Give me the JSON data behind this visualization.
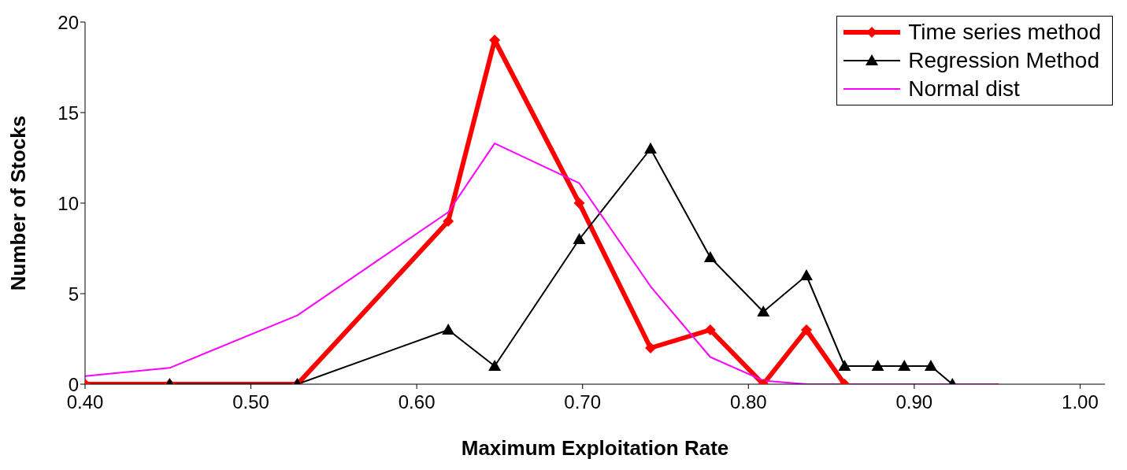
{
  "chart_data": {
    "type": "line",
    "xlabel": "Maximum Exploitation Rate",
    "ylabel": "Number of Stocks",
    "xlim": [
      0.4,
      1.015
    ],
    "xticks": [
      {
        "value": 0.4,
        "label": "0.40"
      },
      {
        "value": 0.5,
        "label": "0.50"
      },
      {
        "value": 0.6,
        "label": "0.60"
      },
      {
        "value": 0.7,
        "label": "0.70"
      },
      {
        "value": 0.8,
        "label": "0.80"
      },
      {
        "value": 0.9,
        "label": "0.90"
      },
      {
        "value": 1.0,
        "label": "1.00"
      }
    ],
    "ylim": [
      0,
      20
    ],
    "yticks": [
      0,
      5,
      10,
      15,
      20
    ],
    "grid": false,
    "legend": "top right",
    "series": [
      {
        "name": "Time series method",
        "color": "#ff0000",
        "marker": "diamond",
        "x": [
          0.4,
          0.451,
          0.528,
          0.619,
          0.647,
          0.698,
          0.741,
          0.777,
          0.809,
          0.835,
          0.858
        ],
        "values": [
          0,
          0,
          0,
          9,
          19,
          10,
          2,
          3,
          0,
          3,
          0
        ]
      },
      {
        "name": "Regression Method",
        "color": "#000000",
        "marker": "triangle",
        "x": [
          0.451,
          0.528,
          0.619,
          0.647,
          0.698,
          0.741,
          0.777,
          0.809,
          0.835,
          0.858,
          0.878,
          0.894,
          0.91,
          0.923
        ],
        "values": [
          0,
          0,
          3,
          1,
          8,
          13,
          7,
          4,
          6,
          1,
          1,
          1,
          1,
          0
        ]
      },
      {
        "name": "Normal dist",
        "color": "#ff00ff",
        "marker": "none",
        "x": [
          0.4,
          0.451,
          0.528,
          0.619,
          0.647,
          0.698,
          0.741,
          0.777,
          0.809,
          0.835,
          0.951
        ],
        "values": [
          0.45,
          0.9,
          3.8,
          9.5,
          13.3,
          11.1,
          5.4,
          1.5,
          0.2,
          0,
          0
        ]
      }
    ]
  }
}
